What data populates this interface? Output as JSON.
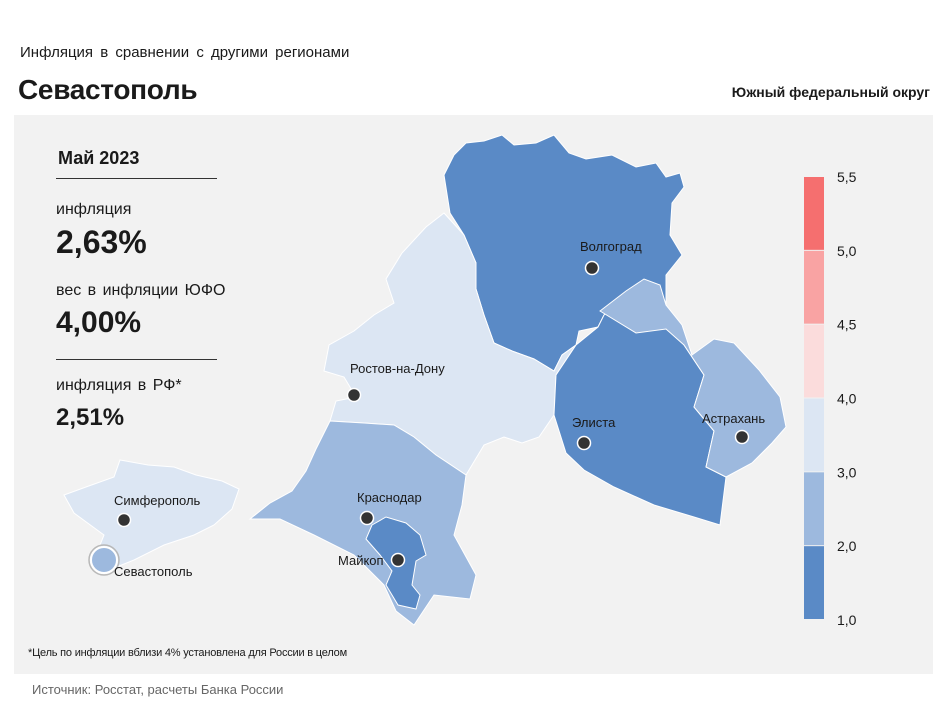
{
  "header": {
    "subtitle": "Инфляция в сравнении с другими регионами",
    "region": "Севастополь",
    "district": "Южный федеральный округ"
  },
  "info": {
    "period": "Май 2023",
    "inflation_label": "инфляция",
    "inflation_value": "2,63%",
    "weight_label": "вес в инфляции ЮФО",
    "weight_value": "4,00%",
    "russia_label": "инфляция в РФ*",
    "russia_value": "2,51%"
  },
  "cities": {
    "volgograd": "Волгоград",
    "rostov": "Ростов-на-Дону",
    "elista": "Элиста",
    "astrakhan": "Астрахань",
    "simferopol": "Симферополь",
    "sevastopol": "Севастополь",
    "krasnodar": "Краснодар",
    "maykop": "Майкоп"
  },
  "legend": {
    "ticks": [
      "1,0",
      "2,0",
      "3,0",
      "4,0",
      "4,5",
      "5,0",
      "5,5"
    ],
    "bins": [
      {
        "from": 1.0,
        "to": 2.0,
        "color": "#5a8ac6"
      },
      {
        "from": 2.0,
        "to": 3.0,
        "color": "#9db9de"
      },
      {
        "from": 3.0,
        "to": 4.0,
        "color": "#dce6f3"
      },
      {
        "from": 4.0,
        "to": 4.5,
        "color": "#fbdcdc"
      },
      {
        "from": 4.5,
        "to": 5.0,
        "color": "#f9a3a3"
      },
      {
        "from": 5.0,
        "to": 5.5,
        "color": "#f56f6f"
      }
    ]
  },
  "colors": {
    "dark_blue": "#5a8ac6",
    "mid_blue": "#9db9de",
    "light_blue": "#dce6f3",
    "sevastopol_marker": "#9db9de"
  },
  "footnote": "*Цель по инфляции вблизи 4% установлена для России в целом",
  "source": "Источник: Росстат, расчеты Банка России"
}
